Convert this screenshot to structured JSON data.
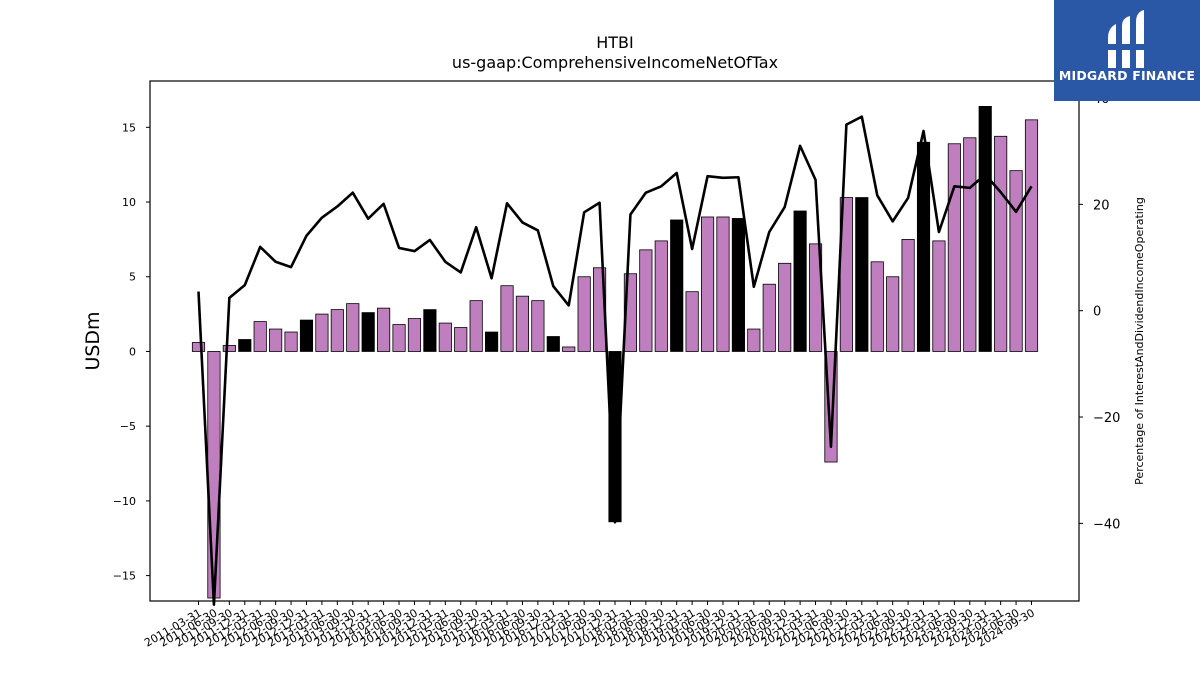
{
  "chart_data": {
    "type": "bar",
    "title": "HTBI",
    "subtitle": "us-gaap:ComprehensiveIncomeNetOfTax",
    "ylabel": "USDm",
    "y2label": "Percentage of InterestAndDividendIncomeOperating",
    "ylim": [
      -16.7,
      18.1
    ],
    "y2lim": [
      -54.6,
      43.2
    ],
    "yticks": [
      -15,
      -10,
      -5,
      0,
      5,
      10,
      15
    ],
    "y2ticks": [
      -40,
      -20,
      0,
      20,
      40
    ],
    "categories": [
      "2011-03-31",
      "2011-06-30",
      "2011-09-30",
      "2011-12-31",
      "2012-03-31",
      "2012-06-30",
      "2012-09-30",
      "2012-12-31",
      "2013-03-31",
      "2013-06-30",
      "2013-09-30",
      "2013-12-31",
      "2014-03-31",
      "2014-06-30",
      "2014-09-30",
      "2014-12-31",
      "2015-03-31",
      "2015-06-30",
      "2015-09-30",
      "2015-12-31",
      "2016-03-31",
      "2016-06-30",
      "2016-09-30",
      "2016-12-31",
      "2017-03-31",
      "2017-06-30",
      "2017-09-30",
      "2017-12-31",
      "2018-03-31",
      "2018-06-30",
      "2018-09-30",
      "2018-12-31",
      "2019-03-31",
      "2019-06-30",
      "2019-09-30",
      "2019-12-31",
      "2020-03-31",
      "2020-06-30",
      "2020-09-30",
      "2020-12-31",
      "2021-03-31",
      "2021-06-30",
      "2021-09-30",
      "2021-12-31",
      "2022-03-31",
      "2022-06-30",
      "2022-09-30",
      "2022-12-31",
      "2023-03-31",
      "2023-06-30",
      "2023-09-30",
      "2023-12-31",
      "2024-03-31",
      "2024-06-30",
      "2024-09-30"
    ],
    "xtick_labels": [
      "2011-03-31",
      "2011-06-30",
      "2011-09-30",
      "2011-12-31",
      "2012-03-31",
      "2012-06-30",
      "2012-09-30",
      "2012-12-31",
      "2013-03-31",
      "2013-06-30",
      "2013-09-30",
      "2013-12-31",
      "2014-03-31",
      "2014-06-30",
      "2014-09-30",
      "2014-12-31",
      "2015-03-31",
      "2015-06-30",
      "2015-09-30",
      "2015-12-31",
      "2016-03-31",
      "2016-06-30",
      "2016-09-30",
      "2016-12-31",
      "2017-03-31",
      "2017-06-30",
      "2017-09-30",
      "2017-12-31",
      "2018-03-31",
      "2018-06-30",
      "2018-09-30",
      "2018-12-31",
      "2019-03-31",
      "2019-06-30",
      "2019-09-30",
      "2019-12-31",
      "2020-03-31",
      "2020-06-30",
      "2020-09-30",
      "2020-12-31",
      "2021-03-31",
      "2021-06-30",
      "2021-09-30",
      "2021-12-31",
      "2022-03-31",
      "2022-06-30",
      "2022-09-30",
      "2022-12-31",
      "2023-03-31",
      "2023-06-30",
      "2023-09-30",
      "2023-12-31",
      "2024-03-31",
      "2024-06-30",
      "2024-09-30"
    ],
    "series": [
      {
        "axis": "left",
        "kind": "bar",
        "values": [
          0.6,
          -16.5,
          0.4,
          0.8,
          2.0,
          1.5,
          1.3,
          2.1,
          2.5,
          2.8,
          3.2,
          2.6,
          2.9,
          1.8,
          2.2,
          2.8,
          1.9,
          1.6,
          3.4,
          1.3,
          4.4,
          3.7,
          3.4,
          1.0,
          0.3,
          5.0,
          5.6,
          -11.4,
          5.2,
          6.8,
          7.4,
          8.8,
          4.0,
          9.0,
          9.0,
          8.9,
          1.5,
          4.5,
          5.9,
          9.4,
          7.2,
          -7.4,
          10.3,
          10.3,
          6.0,
          5.0,
          7.5,
          14.0,
          7.4,
          13.9,
          14.3,
          16.4,
          14.4,
          12.1,
          15.5
        ],
        "highlight": [
          false,
          false,
          false,
          true,
          false,
          false,
          false,
          true,
          false,
          false,
          false,
          true,
          false,
          false,
          false,
          true,
          false,
          false,
          false,
          true,
          false,
          false,
          false,
          true,
          false,
          false,
          false,
          true,
          false,
          false,
          false,
          true,
          false,
          false,
          false,
          true,
          false,
          false,
          false,
          true,
          false,
          false,
          false,
          true,
          false,
          false,
          false,
          true,
          false,
          false,
          false,
          true,
          false,
          false,
          false
        ]
      },
      {
        "axis": "right",
        "kind": "line",
        "values": [
          3.6,
          -55.3,
          2.4,
          4.8,
          12.0,
          9.2,
          8.2,
          14.1,
          17.5,
          19.6,
          22.2,
          17.3,
          20.1,
          11.8,
          11.2,
          13.3,
          9.2,
          7.2,
          15.7,
          6.1,
          20.2,
          16.6,
          15.1,
          4.6,
          1.0,
          18.5,
          20.3,
          -39.8,
          18.1,
          22.2,
          23.4,
          25.9,
          11.6,
          25.3,
          25.0,
          25.1,
          4.5,
          14.8,
          19.5,
          31.0,
          24.6,
          -25.6,
          35.0,
          36.5,
          21.7,
          16.8,
          21.2,
          33.8,
          14.8,
          23.4,
          23.1,
          25.6,
          22.3,
          18.6,
          23.4
        ]
      }
    ],
    "colors": {
      "bar": "#bf7fbf",
      "bar_highlight": "#000000",
      "line": "#000000",
      "bar_edge": "#000000"
    },
    "legend": "none",
    "grid": false
  },
  "logo": {
    "text": "MIDGARD FINANCE",
    "color": "#2b58a6"
  }
}
